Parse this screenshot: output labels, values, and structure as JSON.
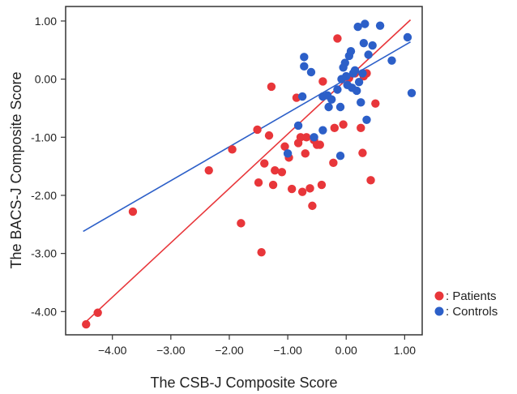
{
  "chart_data": {
    "type": "scatter",
    "xlabel": "The CSB-J Composite Score",
    "ylabel": "The BACS-J Composite Score",
    "xlim": [
      -4.8,
      1.3
    ],
    "ylim": [
      -4.4,
      1.25
    ],
    "xticks": [
      -4.0,
      -3.0,
      -2.0,
      -1.0,
      0.0,
      1.0
    ],
    "xtick_labels": [
      "−4.00",
      "−3.00",
      "−2.00",
      "−1.00",
      "0.00",
      "1.00"
    ],
    "yticks": [
      1.0,
      0.0,
      -1.0,
      -2.0,
      -3.0,
      -4.0
    ],
    "ytick_labels": [
      "1.00",
      "0.00",
      "-1.00",
      "-2.00",
      "-3.00",
      "-4.00"
    ],
    "legend_position": "right-bottom outside",
    "grid": false,
    "series": [
      {
        "name": "Patients",
        "color": "#e8363a",
        "points": [
          [
            -4.45,
            -4.22
          ],
          [
            -4.25,
            -4.02
          ],
          [
            -3.65,
            -2.28
          ],
          [
            -2.35,
            -1.57
          ],
          [
            -1.95,
            -1.21
          ],
          [
            -1.8,
            -2.48
          ],
          [
            -1.52,
            -0.87
          ],
          [
            -1.5,
            -1.78
          ],
          [
            -1.45,
            -2.98
          ],
          [
            -1.4,
            -1.45
          ],
          [
            -1.32,
            -0.97
          ],
          [
            -1.28,
            -0.13
          ],
          [
            -1.25,
            -1.82
          ],
          [
            -1.22,
            -1.57
          ],
          [
            -1.1,
            -1.6
          ],
          [
            -1.05,
            -1.16
          ],
          [
            -0.98,
            -1.35
          ],
          [
            -0.93,
            -1.89
          ],
          [
            -0.85,
            -0.32
          ],
          [
            -0.82,
            -1.1
          ],
          [
            -0.78,
            -1.0
          ],
          [
            -0.75,
            -1.94
          ],
          [
            -0.7,
            -1.28
          ],
          [
            -0.68,
            -1.0
          ],
          [
            -0.62,
            -1.88
          ],
          [
            -0.58,
            -2.18
          ],
          [
            -0.55,
            -1.05
          ],
          [
            -0.5,
            -1.13
          ],
          [
            -0.45,
            -1.13
          ],
          [
            -0.42,
            -1.82
          ],
          [
            -0.4,
            -0.04
          ],
          [
            -0.22,
            -1.44
          ],
          [
            -0.2,
            -0.84
          ],
          [
            -0.15,
            0.7
          ],
          [
            -0.05,
            -0.78
          ],
          [
            0.25,
            -0.84
          ],
          [
            0.28,
            -1.27
          ],
          [
            0.3,
            0.05
          ],
          [
            0.35,
            0.1
          ],
          [
            0.42,
            -1.74
          ],
          [
            0.5,
            -0.42
          ],
          [
            0.15,
            0.1
          ],
          [
            0.05,
            0.02
          ]
        ]
      },
      {
        "name": "Controls",
        "color": "#2c5fc8",
        "points": [
          [
            -1.0,
            -1.28
          ],
          [
            -0.82,
            -0.8
          ],
          [
            -0.75,
            -0.3
          ],
          [
            -0.72,
            0.38
          ],
          [
            -0.72,
            0.22
          ],
          [
            -0.6,
            0.12
          ],
          [
            -0.55,
            -1.0
          ],
          [
            -0.4,
            -0.3
          ],
          [
            -0.32,
            -0.28
          ],
          [
            -0.3,
            -0.48
          ],
          [
            -0.25,
            -0.35
          ],
          [
            -0.15,
            -0.18
          ],
          [
            -0.1,
            -0.48
          ],
          [
            -0.08,
            0.0
          ],
          [
            -0.05,
            0.2
          ],
          [
            -0.02,
            0.28
          ],
          [
            0.0,
            0.05
          ],
          [
            0.02,
            -0.1
          ],
          [
            0.05,
            0.4
          ],
          [
            0.08,
            0.48
          ],
          [
            0.1,
            -0.15
          ],
          [
            0.12,
            0.1
          ],
          [
            0.15,
            0.15
          ],
          [
            0.18,
            -0.2
          ],
          [
            0.2,
            0.9
          ],
          [
            0.22,
            -0.05
          ],
          [
            0.25,
            -0.4
          ],
          [
            0.28,
            0.1
          ],
          [
            0.3,
            0.62
          ],
          [
            0.32,
            0.95
          ],
          [
            0.35,
            -0.7
          ],
          [
            0.38,
            0.42
          ],
          [
            0.45,
            0.58
          ],
          [
            0.58,
            0.92
          ],
          [
            0.78,
            0.32
          ],
          [
            1.05,
            0.72
          ],
          [
            1.12,
            -0.24
          ],
          [
            -0.1,
            -1.32
          ],
          [
            -0.4,
            -0.88
          ]
        ]
      }
    ],
    "fit_lines": [
      {
        "series": "Patients",
        "color": "#e8363a",
        "from": [
          -4.5,
          -4.22
        ],
        "to": [
          1.1,
          1.02
        ]
      },
      {
        "series": "Controls",
        "color": "#2c5fc8",
        "from": [
          -4.5,
          -2.62
        ],
        "to": [
          1.1,
          0.64
        ]
      }
    ]
  },
  "legend": {
    "items": [
      {
        "label": ": Patients",
        "color": "#e8363a"
      },
      {
        "label": ": Controls",
        "color": "#2c5fc8"
      }
    ]
  }
}
